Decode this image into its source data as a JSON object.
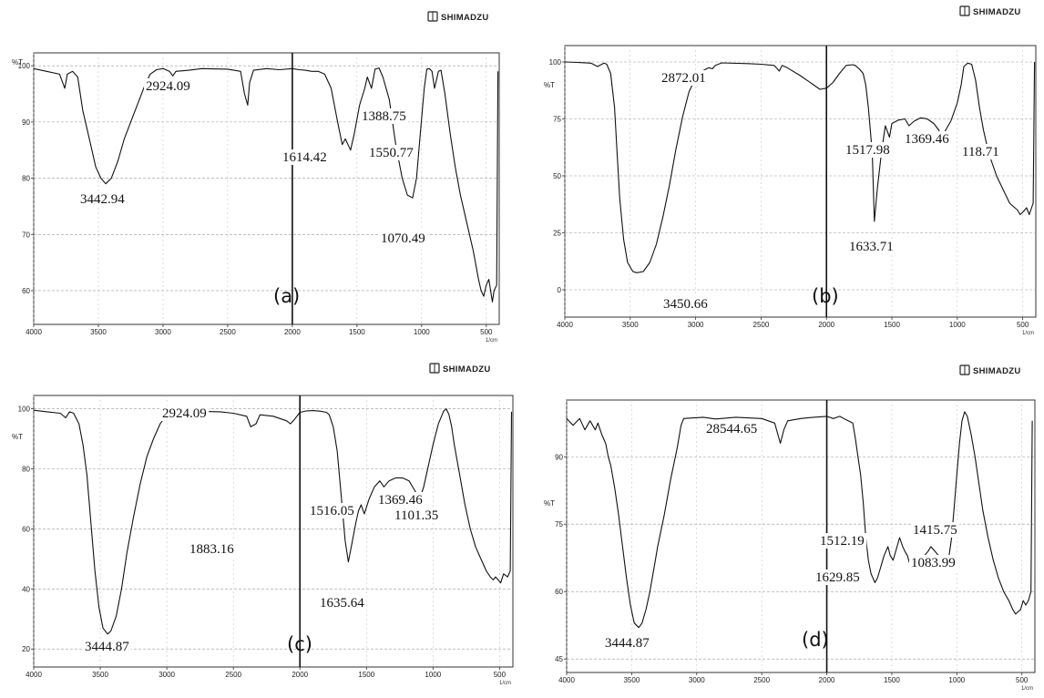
{
  "brand": "SHIMADZU",
  "panels": [
    {
      "id": "a",
      "label": "(a)",
      "ytick_labels": [
        "100",
        "90",
        "80",
        "70",
        "60"
      ],
      "xtick_labels": [
        "4000",
        "3500",
        "3000",
        "2500",
        "2000",
        "1500",
        "1000",
        "500"
      ],
      "y_unit": "%T",
      "x_unit": "1/cm",
      "peaks": [
        "2924.09",
        "1388.75",
        "1614.42",
        "1550.77",
        "3442.94",
        "1070.49"
      ]
    },
    {
      "id": "b",
      "label": "(b)",
      "ytick_labels": [
        "100",
        "75",
        "50",
        "25",
        "0"
      ],
      "xtick_labels": [
        "4000",
        "3500",
        "3000",
        "2500",
        "2000",
        "1500",
        "1000",
        "500"
      ],
      "y_unit": "%T",
      "x_unit": "1/cm",
      "peaks": [
        "2872.01",
        "1369.46",
        "1517.98",
        "118.71",
        "1633.71",
        "3450.66"
      ]
    },
    {
      "id": "c",
      "label": "(c)",
      "ytick_labels": [
        "100",
        "80",
        "60",
        "40",
        "20"
      ],
      "xtick_labels": [
        "4000",
        "3500",
        "3000",
        "2500",
        "2000",
        "1500",
        "1000",
        "500"
      ],
      "y_unit": "%T",
      "x_unit": "1/cm",
      "peaks": [
        "2924.09",
        "1516.05",
        "1369.46",
        "1101.35",
        "1883.16",
        "1635.64",
        "3444.87"
      ]
    },
    {
      "id": "d",
      "label": "(d)",
      "ytick_labels": [
        "90",
        "75",
        "60",
        "45"
      ],
      "xtick_labels": [
        "4000",
        "3500",
        "3000",
        "2500",
        "2000",
        "1500",
        "1000",
        "500"
      ],
      "y_unit": "%T",
      "x_unit": "1/cm",
      "peaks": [
        "28544.65",
        "1415.75",
        "1512.19",
        "1629.85",
        "1083.99",
        "3444.87"
      ]
    }
  ],
  "chart_data": [
    {
      "type": "line",
      "panel": "a",
      "xlabel": "1/cm",
      "ylabel": "%T",
      "xlim": [
        4000,
        400
      ],
      "ylim": [
        54,
        101
      ],
      "yticks": [
        100,
        90,
        80,
        70,
        60
      ],
      "xticks": [
        4000,
        3500,
        3000,
        2500,
        2000,
        1500,
        1000,
        500
      ],
      "grid": true,
      "series": [
        {
          "x": [
            4000,
            3900,
            3800,
            3760,
            3740,
            3700,
            3660,
            3620,
            3600,
            3560,
            3520,
            3480,
            3443,
            3400,
            3350,
            3300,
            3250,
            3200,
            3150,
            3100,
            3050,
            3000,
            2950,
            2924,
            2900,
            2800,
            2700,
            2500,
            2400,
            2370,
            2345,
            2330,
            2300,
            2200,
            2100,
            2000,
            1950,
            1900,
            1850,
            1800,
            1750,
            1700,
            1650,
            1614,
            1590,
            1550,
            1520,
            1480,
            1440,
            1420,
            1388,
            1360,
            1330,
            1300,
            1250,
            1200,
            1150,
            1110,
            1070,
            1040,
            1010,
            980,
            960,
            940,
            920,
            900,
            870,
            850,
            820,
            780,
            740,
            700,
            650,
            600,
            560,
            540,
            520,
            500,
            480,
            453,
            440,
            420,
            410
          ],
          "y": [
            99.5,
            99,
            98.5,
            96,
            98.5,
            99,
            98,
            92,
            90,
            86,
            82,
            80,
            79,
            80,
            83,
            87,
            90,
            93,
            96,
            98.5,
            99.3,
            99.5,
            99,
            98.2,
            99,
            99.2,
            99.5,
            99.4,
            99,
            95,
            93,
            97,
            99.2,
            99.5,
            99.3,
            99.5,
            99.3,
            99.2,
            99,
            99,
            98.5,
            96,
            90,
            86,
            87,
            85,
            88,
            93,
            96,
            98,
            96,
            99.4,
            99.6,
            98,
            94,
            86,
            80,
            77,
            76.5,
            80,
            88,
            96,
            99.4,
            99.5,
            99,
            96,
            99,
            99.2,
            95,
            88,
            82,
            77,
            72,
            67,
            62,
            60,
            59,
            61,
            62,
            58,
            60,
            61,
            99
          ]
        }
      ]
    },
    {
      "type": "line",
      "panel": "b",
      "xlabel": "1/cm",
      "ylabel": "%T",
      "xlim": [
        4000,
        400
      ],
      "ylim": [
        -12,
        104
      ],
      "yticks": [
        100,
        75,
        50,
        25,
        0
      ],
      "xticks": [
        4000,
        3500,
        3000,
        2500,
        2000,
        1500,
        1000,
        500
      ],
      "grid": true,
      "series": [
        {
          "x": [
            4000,
            3900,
            3800,
            3750,
            3700,
            3680,
            3650,
            3620,
            3600,
            3580,
            3550,
            3520,
            3480,
            3450,
            3400,
            3350,
            3300,
            3250,
            3200,
            3150,
            3100,
            3050,
            3000,
            2950,
            2900,
            2872,
            2850,
            2800,
            2600,
            2500,
            2400,
            2360,
            2340,
            2300,
            2200,
            2100,
            2050,
            2000,
            1950,
            1900,
            1850,
            1800,
            1780,
            1750,
            1720,
            1700,
            1680,
            1650,
            1634,
            1610,
            1580,
            1550,
            1518,
            1500,
            1450,
            1400,
            1369,
            1330,
            1280,
            1230,
            1180,
            1140,
            1119,
            1090,
            1050,
            1000,
            970,
            950,
            920,
            890,
            860,
            830,
            800,
            760,
            700,
            650,
            600,
            560,
            540,
            520,
            500,
            470,
            450,
            420,
            410
          ],
          "y": [
            100,
            99.8,
            99.5,
            98,
            99.5,
            99,
            95,
            80,
            60,
            40,
            22,
            12,
            8,
            7.5,
            8,
            12,
            20,
            32,
            46,
            62,
            76,
            87,
            93,
            96,
            97.5,
            97,
            98.5,
            99.6,
            99.3,
            99,
            98.5,
            96,
            98.5,
            97.5,
            94,
            90,
            88,
            88.5,
            91,
            95,
            98.5,
            98.8,
            98.5,
            97,
            95,
            90,
            80,
            60,
            30,
            45,
            60,
            72,
            67,
            73,
            74.5,
            75,
            72,
            74,
            75.5,
            75,
            73,
            70,
            66,
            70,
            74,
            82,
            90,
            98,
            99.5,
            99,
            92,
            80,
            70,
            60,
            50,
            44,
            38,
            36,
            35,
            33,
            34,
            36,
            33,
            38,
            100
          ]
        }
      ]
    },
    {
      "type": "line",
      "panel": "c",
      "xlabel": "1/cm",
      "ylabel": "%T",
      "xlim": [
        4000,
        400
      ],
      "ylim": [
        14,
        102
      ],
      "yticks": [
        100,
        80,
        60,
        40,
        20
      ],
      "xticks": [
        4000,
        3500,
        3000,
        2500,
        2000,
        1500,
        1000,
        500
      ],
      "grid": true,
      "series": [
        {
          "x": [
            4000,
            3900,
            3800,
            3760,
            3730,
            3700,
            3660,
            3630,
            3600,
            3570,
            3540,
            3510,
            3480,
            3445,
            3420,
            3380,
            3340,
            3300,
            3250,
            3200,
            3150,
            3100,
            3050,
            3000,
            2950,
            2924,
            2900,
            2800,
            2600,
            2500,
            2400,
            2370,
            2330,
            2300,
            2200,
            2100,
            2071,
            2040,
            2000,
            1950,
            1900,
            1850,
            1800,
            1780,
            1750,
            1720,
            1700,
            1680,
            1660,
            1636,
            1610,
            1580,
            1560,
            1540,
            1516,
            1480,
            1440,
            1400,
            1369,
            1330,
            1280,
            1230,
            1180,
            1140,
            1101,
            1070,
            1040,
            1000,
            960,
            920,
            900,
            880,
            860,
            840,
            800,
            760,
            720,
            680,
            640,
            600,
            570,
            548,
            530,
            510,
            492,
            470,
            440,
            420,
            410
          ],
          "y": [
            99.5,
            99,
            98.5,
            97,
            99,
            98.5,
            95,
            88,
            78,
            62,
            46,
            34,
            27,
            25,
            26,
            31,
            40,
            52,
            64,
            75,
            84,
            90,
            95,
            98,
            98.8,
            98,
            99,
            99.2,
            99,
            98.5,
            97.5,
            94,
            95,
            98,
            97.5,
            96,
            95,
            96.5,
            98.8,
            99.3,
            99.4,
            99.2,
            98.8,
            98,
            94,
            86,
            76,
            66,
            56,
            49,
            55,
            62,
            66,
            68,
            65,
            70,
            74,
            76,
            74,
            76,
            77,
            77,
            76,
            73,
            70,
            74,
            80,
            88,
            95,
            99.2,
            100,
            98,
            94,
            88,
            78,
            68,
            60,
            54,
            50,
            46,
            44,
            43,
            44,
            43,
            42,
            45,
            44,
            46,
            99
          ]
        }
      ]
    },
    {
      "type": "line",
      "panel": "d",
      "xlabel": "1/cm",
      "ylabel": "%T",
      "xlim": [
        4000,
        400
      ],
      "ylim": [
        42,
        101
      ],
      "yticks": [
        90,
        75,
        60,
        45
      ],
      "xticks": [
        4000,
        3500,
        3000,
        2500,
        2000,
        1500,
        1000,
        500
      ],
      "grid": true,
      "series": [
        {
          "x": [
            4000,
            3950,
            3900,
            3860,
            3820,
            3780,
            3760,
            3730,
            3700,
            3680,
            3660,
            3630,
            3600,
            3570,
            3540,
            3510,
            3480,
            3445,
            3420,
            3390,
            3360,
            3330,
            3300,
            3250,
            3200,
            3150,
            3120,
            3100,
            2950,
            2854,
            2700,
            2500,
            2400,
            2357,
            2330,
            2300,
            2200,
            2100,
            2000,
            1950,
            1900,
            1850,
            1800,
            1780,
            1760,
            1740,
            1720,
            1700,
            1680,
            1660,
            1630,
            1610,
            1590,
            1560,
            1530,
            1512,
            1490,
            1460,
            1440,
            1416,
            1400,
            1380,
            1360,
            1340,
            1310,
            1280,
            1250,
            1220,
            1200,
            1170,
            1140,
            1100,
            1084,
            1060,
            1040,
            1020,
            1000,
            980,
            960,
            940,
            920,
            890,
            860,
            830,
            800,
            760,
            720,
            680,
            640,
            600,
            570,
            548,
            530,
            510,
            490,
            470,
            450,
            430,
            420
          ],
          "y": [
            98.5,
            97,
            98.5,
            96,
            98,
            96,
            97.5,
            95,
            93,
            90,
            88,
            83,
            77,
            70,
            63,
            57,
            53,
            52,
            53,
            56,
            60,
            65,
            70,
            77,
            85,
            92,
            97,
            98.5,
            98.8,
            98.4,
            98.8,
            98.5,
            97.5,
            93,
            96,
            98,
            98.5,
            98.8,
            99,
            98.5,
            99,
            98.2,
            97.5,
            94,
            90,
            86,
            80,
            72,
            67,
            64,
            62,
            63,
            65,
            68,
            70,
            68,
            67,
            70,
            72,
            70,
            69,
            68,
            66,
            67,
            68,
            67,
            68,
            69,
            70,
            69,
            68,
            67,
            66,
            68,
            72,
            79,
            86,
            93,
            98,
            100,
            99,
            95,
            90,
            84,
            78,
            72,
            67,
            63,
            60,
            58,
            56,
            55,
            55.5,
            56,
            58,
            57,
            58,
            60,
            98
          ]
        }
      ]
    }
  ]
}
